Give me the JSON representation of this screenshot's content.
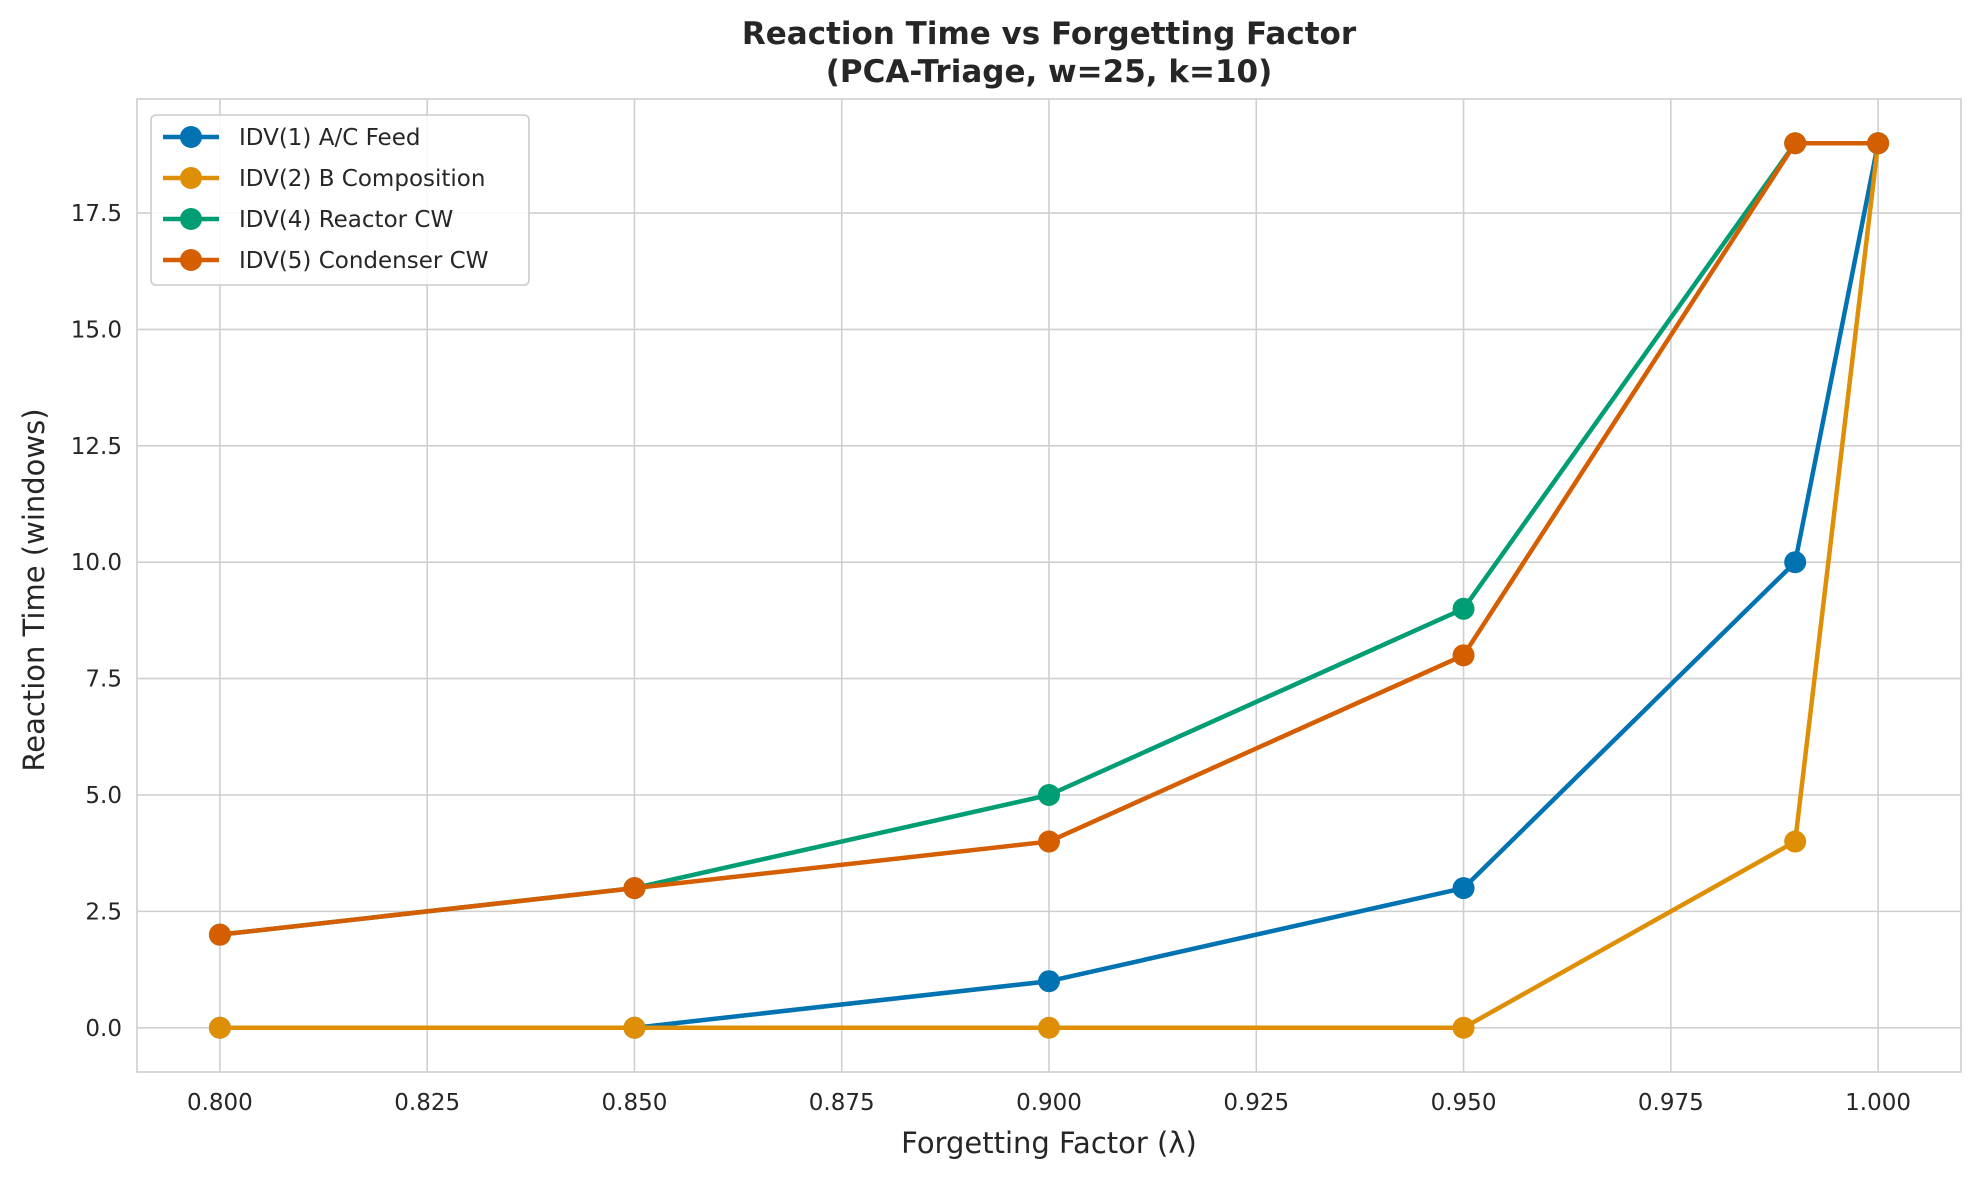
{
  "chart_data": {
    "type": "line",
    "title_line1": "Reaction Time vs Forgetting Factor",
    "title_line2": "(PCA-Triage, w=25, k=10)",
    "xlabel": "Forgetting Factor (λ)",
    "ylabel": "Reaction Time (windows)",
    "xlim": [
      0.79,
      1.01
    ],
    "ylim": [
      -0.95,
      19.95
    ],
    "xticks": [
      0.8,
      0.825,
      0.85,
      0.875,
      0.9,
      0.925,
      0.95,
      0.975,
      1.0
    ],
    "xtick_labels": [
      "0.800",
      "0.825",
      "0.850",
      "0.875",
      "0.900",
      "0.925",
      "0.950",
      "0.975",
      "1.000"
    ],
    "yticks": [
      0,
      2.5,
      5,
      7.5,
      10,
      12.5,
      15,
      17.5
    ],
    "ytick_labels": [
      "0.0",
      "2.5",
      "5.0",
      "7.5",
      "10.0",
      "12.5",
      "15.0",
      "17.5"
    ],
    "grid": true,
    "legend_position": "top-left",
    "x": [
      0.8,
      0.85,
      0.9,
      0.95,
      0.99,
      1.0
    ],
    "series": [
      {
        "name": "IDV(1) A/C Feed",
        "color": "#0173b2",
        "values": [
          0,
          0,
          1,
          3,
          10,
          19
        ]
      },
      {
        "name": "IDV(2) B Composition",
        "color": "#de8f05",
        "values": [
          0,
          0,
          0,
          0,
          4,
          19
        ]
      },
      {
        "name": "IDV(4) Reactor CW",
        "color": "#029e73",
        "values": [
          2,
          3,
          5,
          9,
          19,
          19
        ]
      },
      {
        "name": "IDV(5) Condenser CW",
        "color": "#d55e00",
        "values": [
          2,
          3,
          4,
          8,
          19,
          19
        ]
      }
    ]
  }
}
